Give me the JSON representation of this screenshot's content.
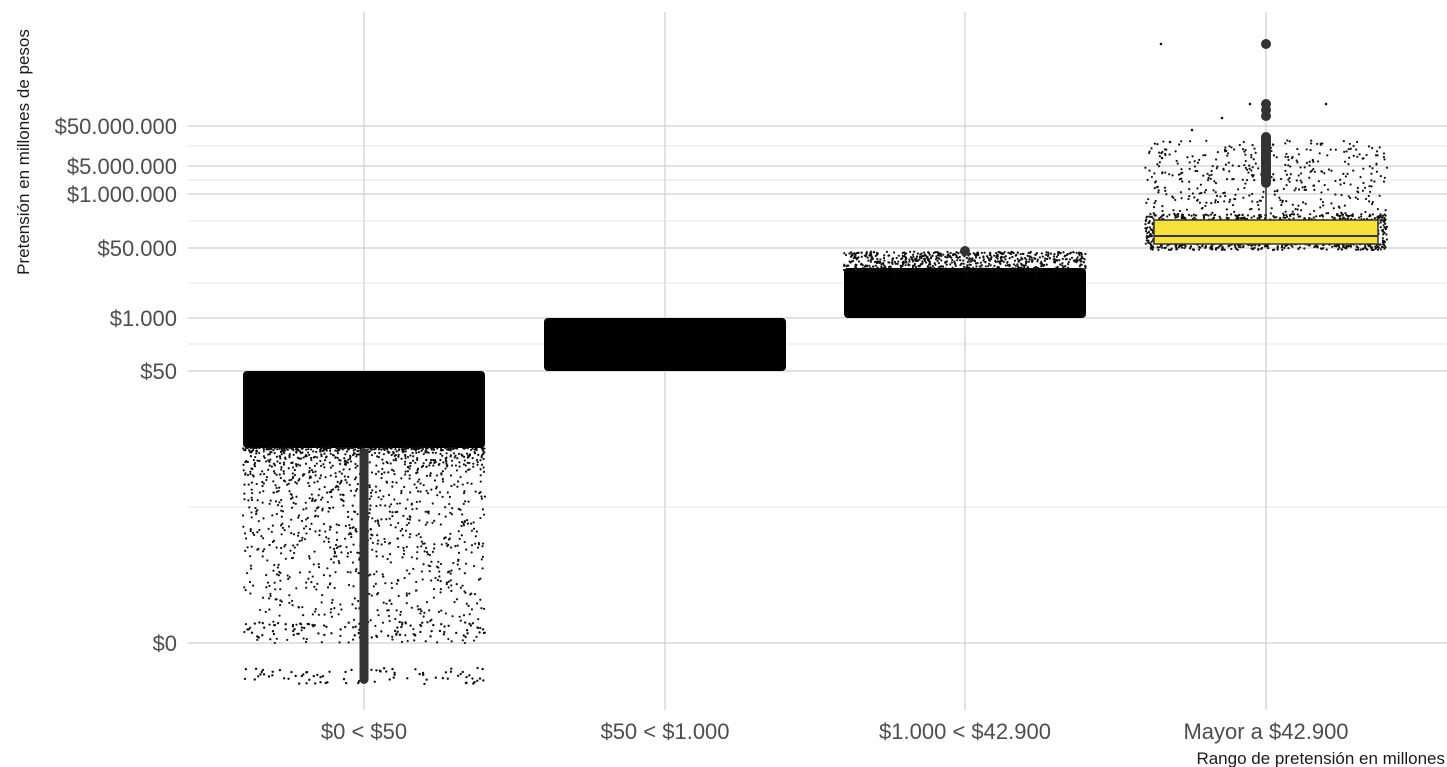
{
  "chart_data": {
    "type": "boxplot-jitter",
    "title": "",
    "xlabel": "Rango de pretensión en millones",
    "ylabel": "Pretensión en millones de pesos",
    "y_scale": "log",
    "ylim": [
      0,
      500000000
    ],
    "grid": true,
    "y_ticks": [
      {
        "value": 0,
        "label": "$0"
      },
      {
        "value": 50,
        "label": "$50"
      },
      {
        "value": 1000,
        "label": "$1.000"
      },
      {
        "value": 50000,
        "label": "$50.000"
      },
      {
        "value": 1000000,
        "label": "$1.000.000"
      },
      {
        "value": 5000000,
        "label": "$5.000.000"
      },
      {
        "value": 50000000,
        "label": "$50.000.000"
      }
    ],
    "categories": [
      "$0 < $50",
      "$50 < $1.000",
      "$1.000 < $42.900",
      "Mayor a $42.900"
    ],
    "groups": [
      {
        "category": "$0 < $50",
        "min": 0,
        "q1": 20,
        "median": 35,
        "q3": 48,
        "max": 50,
        "box_color": "#000000",
        "dense_from": 4,
        "dense_to": 50
      },
      {
        "category": "$50 < $1.000",
        "min": 50,
        "q1": 120,
        "median": 250,
        "q3": 500,
        "max": 1000,
        "box_color": "#000000",
        "dense_from": 50,
        "dense_to": 1000
      },
      {
        "category": "$1.000 < $42.900",
        "min": 1000,
        "q1": 1800,
        "median": 4000,
        "q3": 10000,
        "max": 42900,
        "box_color": "#000000",
        "dense_from": 1000,
        "dense_to": 42900
      },
      {
        "category": "Mayor a $42.900",
        "min": 43000,
        "q1": 60000,
        "median": 80000,
        "q3": 150000,
        "max": 2000000,
        "box_color": "#f5e13a",
        "dense_from": 43000,
        "dense_to": 170000
      }
    ]
  }
}
